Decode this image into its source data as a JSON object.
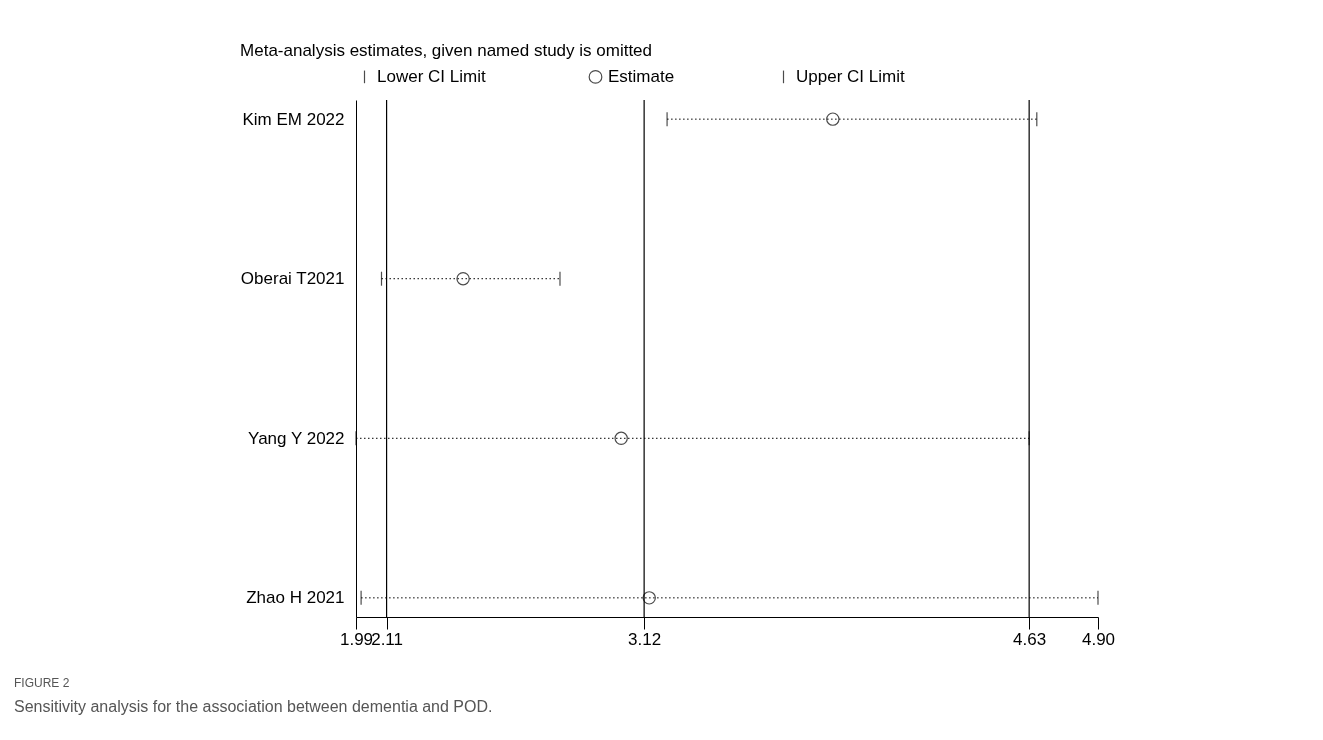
{
  "chart_data": {
    "type": "scatter",
    "orientation": "horizontal",
    "title": "Meta-analysis estimates, given named study is omitted",
    "categories": [
      "Kim EM 2022",
      "Oberai T2021",
      "Yang Y 2022",
      "Zhao H 2021"
    ],
    "series": [
      {
        "name": "Lower CI Limit",
        "color": "#000000",
        "marker": "none",
        "values": [
          null,
          null,
          null,
          null
        ]
      },
      {
        "name": "Estimate",
        "color": "#000000",
        "marker": "circle",
        "values": [
          3.86,
          2.41,
          3.03,
          3.14
        ],
        "errors": [
          [
            3.21,
            4.66
          ],
          [
            2.09,
            2.79
          ],
          [
            1.99,
            4.63
          ],
          [
            2.01,
            4.9
          ]
        ],
        "line_style": "dotted"
      },
      {
        "name": "Upper CI Limit",
        "color": "#000000",
        "marker": "none",
        "values": [
          null,
          null,
          null,
          null
        ]
      }
    ],
    "xlim": [
      1.99,
      4.9
    ],
    "xticks": [
      1.99,
      2.11,
      3.12,
      4.63,
      {
        "value": 4.9,
        "label": "4.90"
      }
    ],
    "ref_lines": [
      {
        "axis": "x",
        "value": 2.11
      },
      {
        "axis": "x",
        "value": 3.12
      },
      {
        "axis": "x",
        "value": 4.63
      }
    ],
    "legend": "top",
    "grid": false,
    "annotations": [
      "FIGURE 2",
      "Sensitivity analysis for the association between dementia and POD."
    ]
  }
}
